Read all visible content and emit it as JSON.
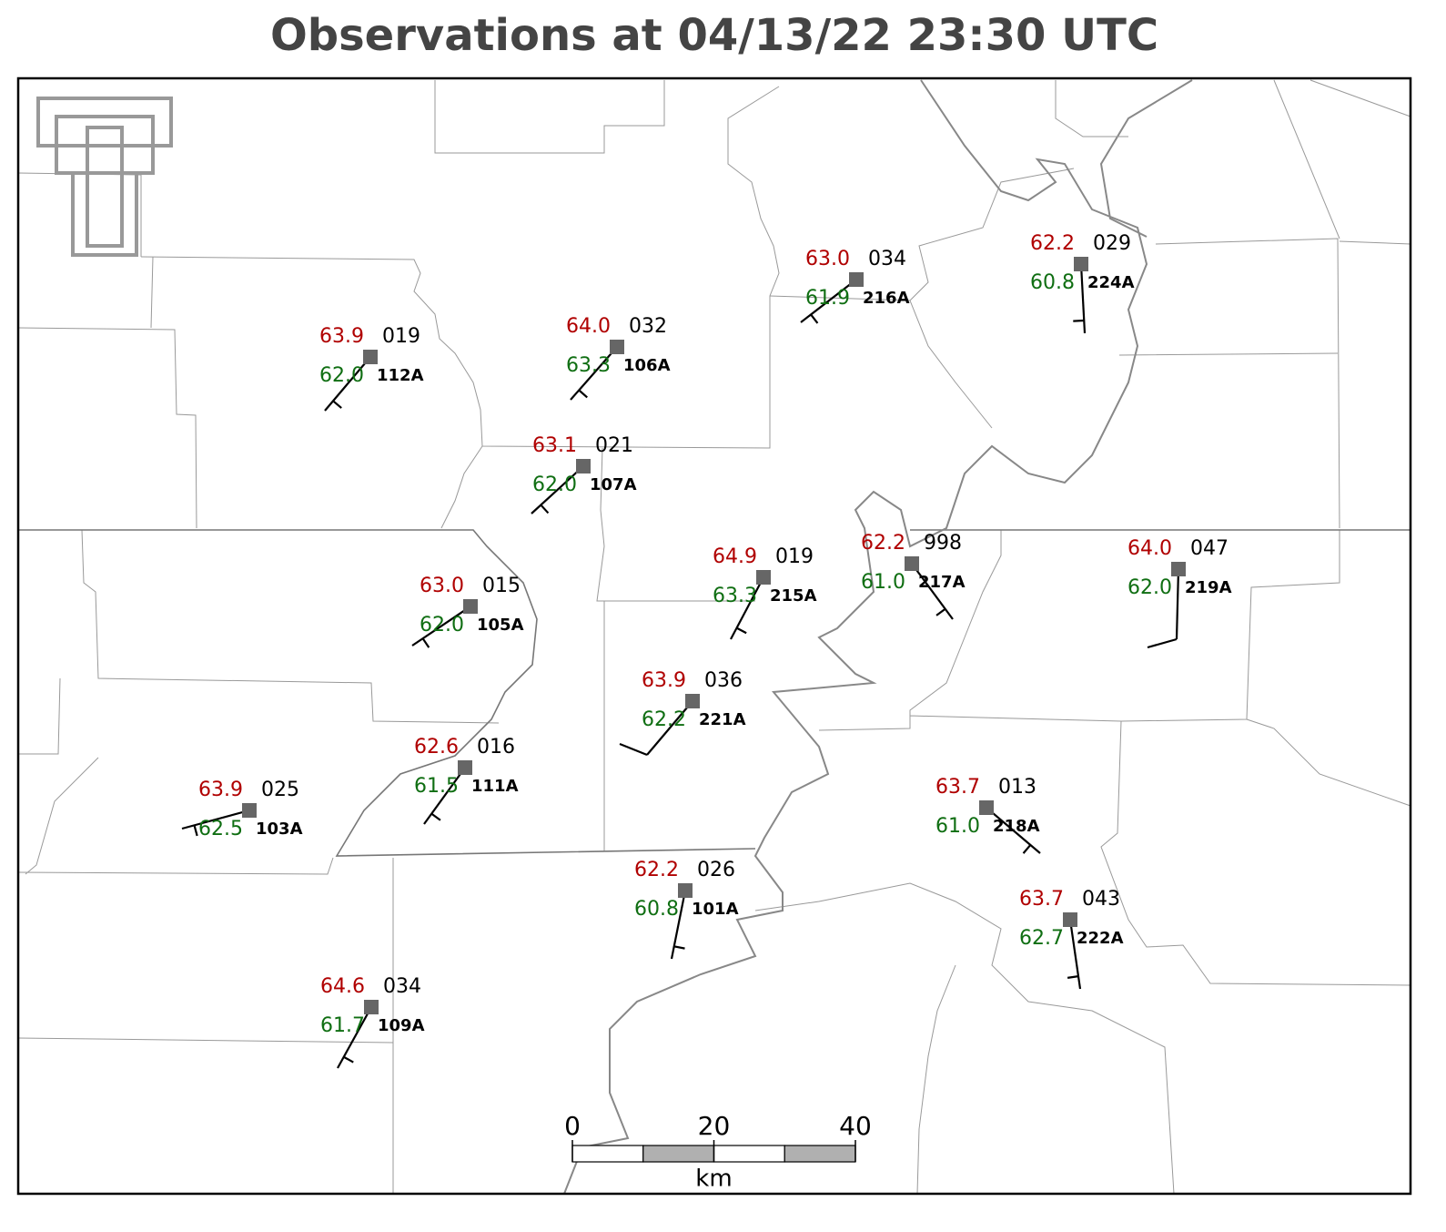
{
  "title": "Observations at 04/13/22 23:30 UTC",
  "stations": [
    {
      "id": "112A",
      "temperature": "63.9",
      "pressure": "019",
      "dewpoint": "62.0"
    },
    {
      "id": "106A",
      "temperature": "64.0",
      "pressure": "032",
      "dewpoint": "63.3"
    },
    {
      "id": "107A",
      "temperature": "63.1",
      "pressure": "021",
      "dewpoint": "62.0"
    },
    {
      "id": "216A",
      "temperature": "63.0",
      "pressure": "034",
      "dewpoint": "61.9"
    },
    {
      "id": "224A",
      "temperature": "62.2",
      "pressure": "029",
      "dewpoint": "60.8"
    },
    {
      "id": "215A",
      "temperature": "64.9",
      "pressure": "019",
      "dewpoint": "63.3"
    },
    {
      "id": "217A",
      "temperature": "62.2",
      "pressure": "998",
      "dewpoint": "61.0"
    },
    {
      "id": "219A",
      "temperature": "64.0",
      "pressure": "047",
      "dewpoint": "62.0"
    },
    {
      "id": "105A",
      "temperature": "63.0",
      "pressure": "015",
      "dewpoint": "62.0"
    },
    {
      "id": "221A",
      "temperature": "63.9",
      "pressure": "036",
      "dewpoint": "62.2"
    },
    {
      "id": "111A",
      "temperature": "62.6",
      "pressure": "016",
      "dewpoint": "61.5"
    },
    {
      "id": "103A",
      "temperature": "63.9",
      "pressure": "025",
      "dewpoint": "62.5"
    },
    {
      "id": "218A",
      "temperature": "63.7",
      "pressure": "013",
      "dewpoint": "61.0"
    },
    {
      "id": "101A",
      "temperature": "62.2",
      "pressure": "026",
      "dewpoint": "60.8"
    },
    {
      "id": "222A",
      "temperature": "63.7",
      "pressure": "043",
      "dewpoint": "62.7"
    },
    {
      "id": "109A",
      "temperature": "64.6",
      "pressure": "034",
      "dewpoint": "61.7"
    }
  ],
  "scale_bar": {
    "ticks": [
      0,
      20,
      40
    ],
    "unit": "km"
  }
}
